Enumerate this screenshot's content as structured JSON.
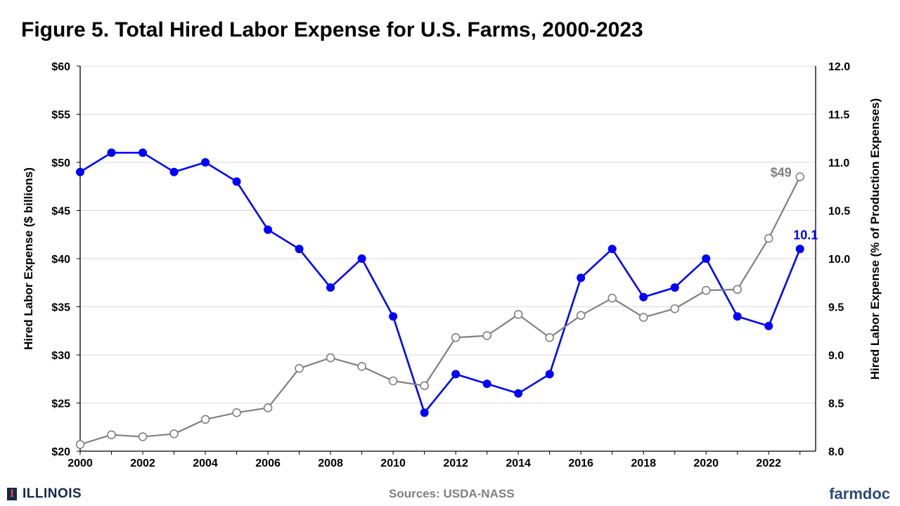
{
  "title": "Figure 5. Total Hired Labor Expense for U.S. Farms, 2000-2023",
  "footer": {
    "logo_text": "ILLINOIS",
    "logo_mark": "I",
    "sources": "Sources: USDA-NASS",
    "brand": "farmdoc"
  },
  "colors": {
    "pct_series": "#0000ff",
    "dollar_series": "#808080",
    "gridline": "#d9d9d9"
  },
  "chart_data": {
    "type": "line",
    "title": "Figure 5. Total Hired Labor Expense for U.S. Farms, 2000-2023",
    "x": [
      2000,
      2001,
      2002,
      2003,
      2004,
      2005,
      2006,
      2007,
      2008,
      2009,
      2010,
      2011,
      2012,
      2013,
      2014,
      2015,
      2016,
      2017,
      2018,
      2019,
      2020,
      2021,
      2022,
      2023
    ],
    "x_tick_labels": [
      "2000",
      "2002",
      "2004",
      "2006",
      "2008",
      "2010",
      "2012",
      "2014",
      "2016",
      "2018",
      "2020",
      "2022"
    ],
    "xlim": [
      2000,
      2023.5
    ],
    "y_left": {
      "label": "Hired Labor Expense ($ billions)",
      "lim": [
        20,
        60
      ],
      "tick_labels": [
        "$20",
        "$25",
        "$30",
        "$35",
        "$40",
        "$45",
        "$50",
        "$55",
        "$60"
      ]
    },
    "y_right": {
      "label": "Hired Labor Expense (% of Production Expenses)",
      "lim": [
        8.0,
        12.0
      ],
      "tick_labels": [
        "8.0",
        "8.5",
        "9.0",
        "9.5",
        "10.0",
        "10.5",
        "11.0",
        "11.5",
        "12.0"
      ]
    },
    "series": [
      {
        "axis": "right",
        "color": "#0000ff",
        "marker": "filled-circle",
        "values": [
          10.9,
          11.1,
          11.1,
          10.9,
          11.0,
          10.8,
          10.3,
          10.1,
          9.7,
          10.0,
          9.4,
          8.4,
          8.8,
          8.7,
          8.6,
          8.8,
          9.8,
          10.1,
          9.6,
          9.7,
          10.0,
          9.4,
          9.3,
          10.1
        ]
      },
      {
        "axis": "left",
        "color": "#808080",
        "marker": "open-circle",
        "values": [
          20.7,
          21.7,
          21.5,
          21.8,
          23.3,
          24.0,
          24.5,
          28.6,
          29.7,
          28.8,
          27.3,
          26.8,
          31.8,
          32.0,
          34.2,
          31.8,
          34.1,
          35.9,
          33.9,
          34.8,
          36.7,
          36.8,
          42.1,
          48.5
        ]
      }
    ],
    "annotations": [
      {
        "text": "$49",
        "series": 1,
        "year": 2023,
        "color": "#808080"
      },
      {
        "text": "10.1",
        "series": 0,
        "year": 2023,
        "color": "#0000ff"
      }
    ],
    "grid": "horizontal"
  }
}
